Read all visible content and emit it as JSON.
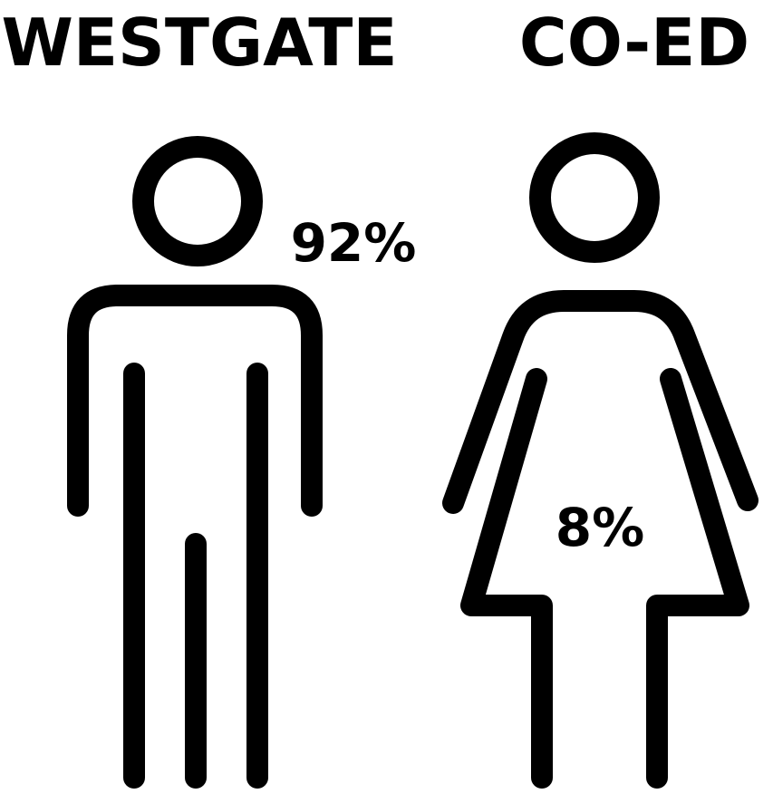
{
  "headings": {
    "left": "WESTGATE",
    "right": "CO-ED"
  },
  "figures": {
    "male": {
      "label": "92%"
    },
    "female": {
      "label": "8%"
    }
  }
}
